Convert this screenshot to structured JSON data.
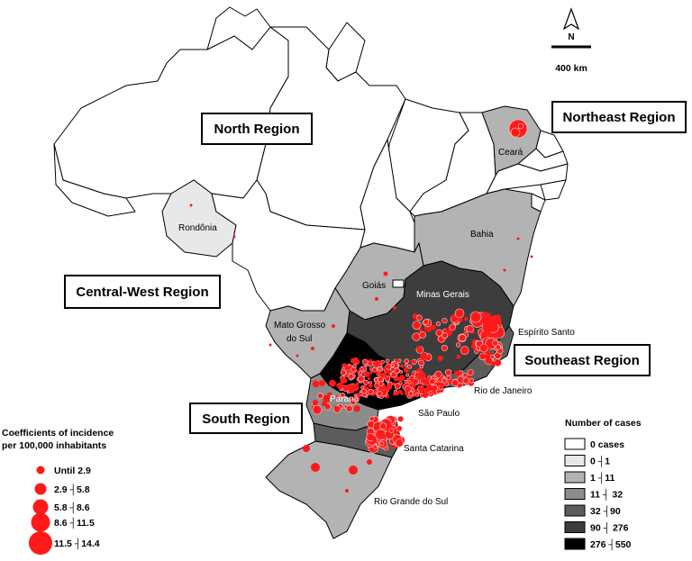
{
  "colors": {
    "class0": "#ffffff",
    "class1": "#e8e8e8",
    "class2": "#b3b3b3",
    "class3": "#8c8c8c",
    "class4": "#5c5c5c",
    "class5": "#3d3d3d",
    "class6": "#000000",
    "dot": "#ff1a1a"
  },
  "north_arrow": {
    "letter": "N"
  },
  "scale_bar": {
    "label": "400 km"
  },
  "regions": {
    "north": "North Region",
    "northeast": "Northeast Region",
    "central_west": "Central-West Region",
    "southeast": "Southeast Region",
    "south": "South Region"
  },
  "states": {
    "ceara": "Ceará",
    "rondonia": "Rondônia",
    "bahia": "Bahia",
    "goias": "Goiás",
    "minas_gerais": "Minas Gerais",
    "espirito_santo": "Espírito Santo",
    "mato_grosso_do_sul_1": "Mato Grosso",
    "mato_grosso_do_sul_2": "do Sul",
    "rio_de_janeiro": "Rio de Janeiro",
    "parana": "Paraná",
    "sao_paulo": "São Paulo",
    "santa_catarina": "Santa Catarina",
    "rio_grande_do_sul": "Rio Grande do Sul"
  },
  "legend_cases": {
    "title": "Number of cases",
    "items": [
      {
        "label": "0 cases",
        "class": "class0"
      },
      {
        "label": "0 ┤1",
        "class": "class1"
      },
      {
        "label": "1 ┤11",
        "class": "class2"
      },
      {
        "label": "11 ┤ 32",
        "class": "class3"
      },
      {
        "label": "32 ┤90",
        "class": "class4"
      },
      {
        "label": "90 ┤ 276",
        "class": "class5"
      },
      {
        "label": "276 ┤550",
        "class": "class6"
      }
    ]
  },
  "legend_incidence": {
    "title_line1": "Coefficients of incidence",
    "title_line2": "per 100,000 inhabitants",
    "items": [
      {
        "label": "Until 2.9"
      },
      {
        "label": "2.9 ┤5.8"
      },
      {
        "label": "5.8 ┤8.6"
      },
      {
        "label": "8.6 ┤11.5"
      },
      {
        "label": "11.5 ┤14.4"
      }
    ]
  }
}
